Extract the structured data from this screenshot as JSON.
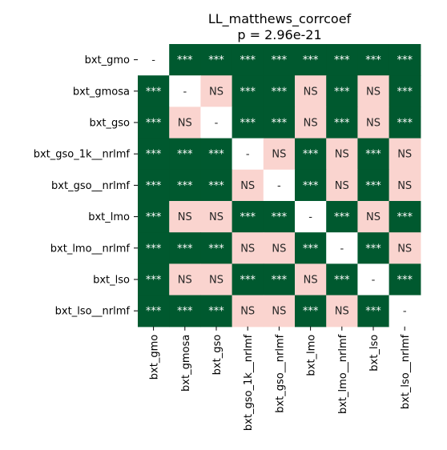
{
  "chart_data": {
    "type": "heatmap",
    "title": "LL_matthews_corrcoef",
    "subtitle": "p = 2.96e-21",
    "rows": [
      "bxt_gmo",
      "bxt_gmosa",
      "bxt_gso",
      "bxt_gso_1k__nrlmf",
      "bxt_gso__nrlmf",
      "bxt_lmo",
      "bxt_lmo__nrlmf",
      "bxt_lso",
      "bxt_lso__nrlmf"
    ],
    "columns": [
      "bxt_gmo",
      "bxt_gmosa",
      "bxt_gso",
      "bxt_gso_1k__nrlmf",
      "bxt_gso__nrlmf",
      "bxt_lmo",
      "bxt_lmo__nrlmf",
      "bxt_lso",
      "bxt_lso__nrlmf"
    ],
    "cells": [
      [
        "-",
        "***",
        "***",
        "***",
        "***",
        "***",
        "***",
        "***",
        "***"
      ],
      [
        "***",
        "-",
        "NS",
        "***",
        "***",
        "NS",
        "***",
        "NS",
        "***"
      ],
      [
        "***",
        "NS",
        "-",
        "***",
        "***",
        "NS",
        "***",
        "NS",
        "***"
      ],
      [
        "***",
        "***",
        "***",
        "-",
        "NS",
        "***",
        "NS",
        "***",
        "NS"
      ],
      [
        "***",
        "***",
        "***",
        "NS",
        "-",
        "***",
        "NS",
        "***",
        "NS"
      ],
      [
        "***",
        "NS",
        "NS",
        "***",
        "***",
        "-",
        "***",
        "NS",
        "***"
      ],
      [
        "***",
        "***",
        "***",
        "NS",
        "NS",
        "***",
        "-",
        "***",
        "NS"
      ],
      [
        "***",
        "NS",
        "NS",
        "***",
        "***",
        "NS",
        "***",
        "-",
        "***"
      ],
      [
        "***",
        "***",
        "***",
        "NS",
        "NS",
        "***",
        "NS",
        "***",
        "-"
      ]
    ],
    "colors": {
      "significant": "#00592f",
      "not_significant": "#fad4cf",
      "diagonal": "#ffffff",
      "significant_text": "#ffffff",
      "other_text": "#262626"
    }
  }
}
